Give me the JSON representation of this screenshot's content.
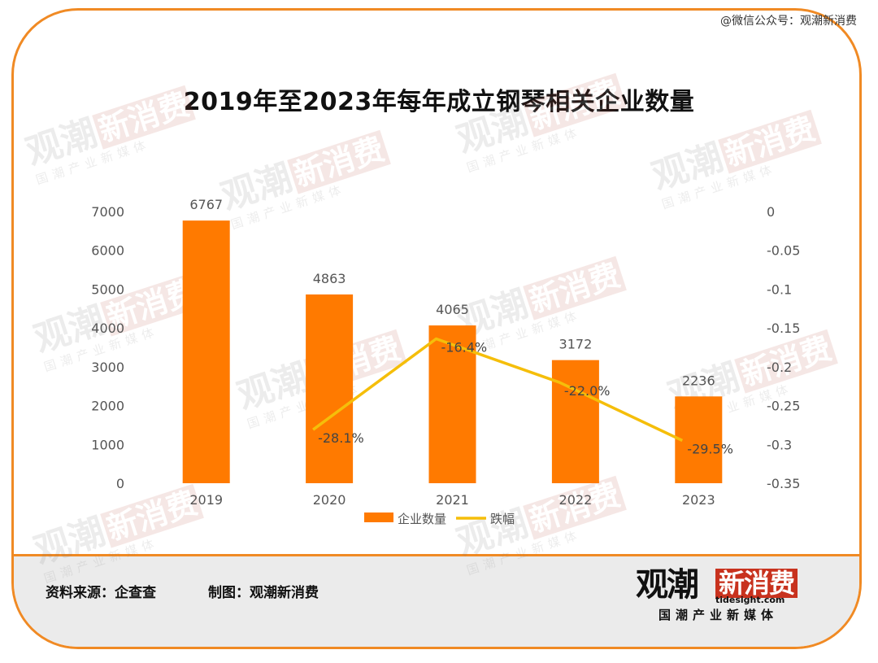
{
  "header": {
    "wechat_label": "@微信公众号：观潮新消费"
  },
  "chart_data": {
    "type": "bar",
    "title": "2019年至2023年每年成立钢琴相关企业数量",
    "categories": [
      "2019",
      "2020",
      "2021",
      "2022",
      "2023"
    ],
    "series": [
      {
        "name": "企业数量",
        "type": "bar",
        "axis": "left",
        "color": "#FF7A00",
        "values": [
          6767,
          4863,
          4065,
          3172,
          2236
        ],
        "labels": [
          "6767",
          "4863",
          "4065",
          "3172",
          "2236"
        ]
      },
      {
        "name": "跌幅",
        "type": "line",
        "axis": "right",
        "color": "#F5BE0A",
        "values": [
          null,
          -0.281,
          -0.164,
          -0.22,
          -0.295
        ],
        "labels": [
          "",
          "-28.1%",
          "-16.4%",
          "-22.0%",
          "-29.5%"
        ]
      }
    ],
    "y_left": {
      "ylim": [
        0,
        7000
      ],
      "ticks": [
        "0",
        "1000",
        "2000",
        "3000",
        "4000",
        "5000",
        "6000",
        "7000"
      ]
    },
    "y_right": {
      "ylim": [
        -0.35,
        0
      ],
      "ticks": [
        "-0.35",
        "-0.3",
        "-0.25",
        "-0.2",
        "-0.15",
        "-0.1",
        "-0.05",
        "0"
      ]
    },
    "grid": false,
    "legend_position": "bottom-center"
  },
  "footer": {
    "source": "资料来源：企查查",
    "maker": "制图：观潮新消费",
    "logo_main_a": "观潮",
    "logo_main_b": "新消费",
    "logo_domain": "tidesight.com",
    "logo_slogan": "国潮产业新媒体"
  },
  "watermark": {
    "text_a": "观潮",
    "text_b": "新消费",
    "text_c": "国潮产业新媒体"
  }
}
